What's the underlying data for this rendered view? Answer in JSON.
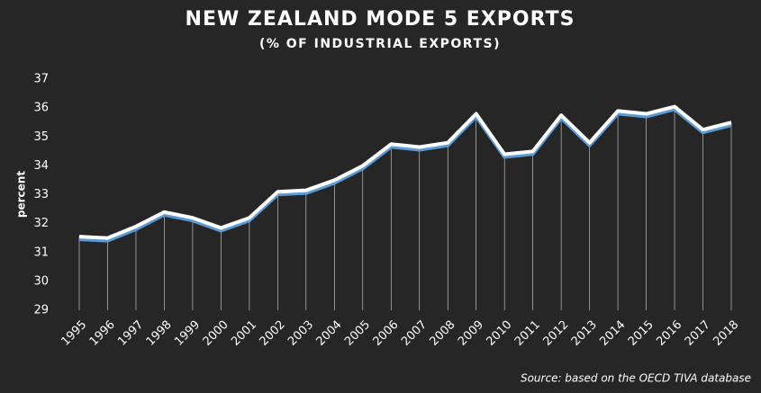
{
  "chart_data": {
    "type": "line",
    "title": "NEW ZEALAND MODE 5 EXPORTS",
    "subtitle": "(% OF INDUSTRIAL EXPORTS)",
    "y_label": "percent",
    "source": "Source: based on the OECD TIVA database",
    "categories": [
      "1995",
      "1996",
      "1997",
      "1998",
      "1999",
      "2000",
      "2001",
      "2002",
      "2003",
      "2004",
      "2005",
      "2006",
      "2007",
      "2008",
      "2009",
      "2010",
      "2011",
      "2012",
      "2013",
      "2014",
      "2015",
      "2016",
      "2017",
      "2018"
    ],
    "series": [
      {
        "color": "#ffffff",
        "shadow_color": "#5b9bd5",
        "values": [
          31.55,
          31.5,
          31.9,
          32.4,
          32.2,
          31.85,
          32.2,
          33.1,
          33.15,
          33.5,
          34.0,
          34.75,
          34.65,
          34.8,
          35.8,
          34.4,
          34.5,
          35.75,
          34.8,
          35.9,
          35.8,
          36.05,
          35.25,
          35.5
        ]
      }
    ],
    "ylim": [
      29,
      37
    ],
    "yticks": [
      29,
      30,
      31,
      32,
      33,
      34,
      35,
      36,
      37
    ],
    "grid": false,
    "drop_lines": true
  }
}
